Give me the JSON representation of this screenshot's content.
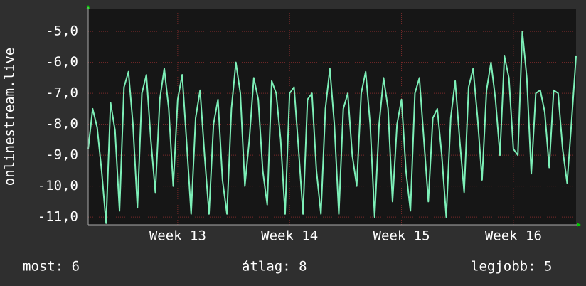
{
  "chart_data": {
    "type": "line",
    "ylabel": "onlinestream.live",
    "x": [
      12.2,
      12.24,
      12.28,
      12.32,
      12.36,
      12.4,
      12.44,
      12.48,
      12.52,
      12.56,
      12.6,
      12.64,
      12.68,
      12.72,
      12.76,
      12.8,
      12.84,
      12.88,
      12.92,
      12.96,
      13,
      13.04,
      13.08,
      13.12,
      13.16,
      13.2,
      13.24,
      13.28,
      13.32,
      13.36,
      13.4,
      13.44,
      13.48,
      13.52,
      13.56,
      13.6,
      13.64,
      13.68,
      13.72,
      13.76,
      13.8,
      13.84,
      13.88,
      13.92,
      13.96,
      14,
      14.04,
      14.08,
      14.12,
      14.16,
      14.2,
      14.24,
      14.28,
      14.32,
      14.36,
      14.4,
      14.44,
      14.48,
      14.52,
      14.56,
      14.6,
      14.64,
      14.68,
      14.72,
      14.76,
      14.8,
      14.84,
      14.88,
      14.92,
      14.96,
      15,
      15.04,
      15.08,
      15.12,
      15.16,
      15.2,
      15.24,
      15.28,
      15.32,
      15.36,
      15.4,
      15.44,
      15.48,
      15.52,
      15.56,
      15.6,
      15.64,
      15.68,
      15.72,
      15.76,
      15.8,
      15.84,
      15.88,
      15.92,
      15.96,
      16,
      16.04,
      16.08,
      16.12,
      16.16,
      16.2,
      16.24,
      16.28,
      16.32,
      16.36,
      16.4,
      16.44,
      16.48,
      16.52,
      16.56
    ],
    "series": [
      {
        "color": "#7df0b8",
        "values": [
          -8.8,
          -7.5,
          -8.1,
          -9.5,
          -11.2,
          -7.3,
          -8.2,
          -10.8,
          -6.8,
          -6.3,
          -8.0,
          -10.7,
          -7.0,
          -6.4,
          -8.5,
          -10.2,
          -7.2,
          -6.2,
          -7.5,
          -10.0,
          -7.2,
          -6.4,
          -8.6,
          -10.9,
          -7.8,
          -6.9,
          -9.0,
          -10.9,
          -8.0,
          -7.2,
          -9.8,
          -10.9,
          -7.5,
          -6.0,
          -7.0,
          -10.0,
          -8.5,
          -6.5,
          -7.2,
          -9.5,
          -10.6,
          -6.6,
          -7.0,
          -8.5,
          -10.9,
          -7.0,
          -6.8,
          -8.8,
          -10.9,
          -7.2,
          -7.0,
          -9.5,
          -10.9,
          -7.5,
          -6.2,
          -8.0,
          -10.9,
          -7.5,
          -7.0,
          -9.0,
          -10.0,
          -7.0,
          -6.3,
          -8.0,
          -11.0,
          -8.0,
          -6.5,
          -7.5,
          -10.5,
          -8.0,
          -7.2,
          -9.5,
          -10.8,
          -7.0,
          -6.5,
          -8.5,
          -10.5,
          -7.8,
          -7.5,
          -9.0,
          -11.0,
          -7.8,
          -6.6,
          -8.5,
          -10.2,
          -6.8,
          -6.2,
          -7.8,
          -9.8,
          -6.9,
          -6.0,
          -7.2,
          -9.0,
          -5.8,
          -6.5,
          -8.8,
          -9.0,
          -5.0,
          -6.5,
          -9.6,
          -7.0,
          -6.9,
          -7.6,
          -9.4,
          -6.9,
          -7.0,
          -8.8,
          -9.9,
          -7.9,
          -5.8
        ]
      }
    ],
    "xlim": [
      12.2,
      16.56
    ],
    "xticks": [
      {
        "value": 13,
        "label": "Week 13"
      },
      {
        "value": 14,
        "label": "Week 14"
      },
      {
        "value": 15,
        "label": "Week 15"
      },
      {
        "value": 16,
        "label": "Week 16"
      }
    ],
    "ylim": [
      -11.25,
      -4.26
    ],
    "yticks": [
      {
        "value": -11,
        "label": "-11,0"
      },
      {
        "value": -10,
        "label": "-10,0"
      },
      {
        "value": -9,
        "label": "-9,0"
      },
      {
        "value": -8,
        "label": "-8,0"
      },
      {
        "value": -7,
        "label": "-7,0"
      },
      {
        "value": -6,
        "label": "-6,0"
      },
      {
        "value": -5,
        "label": "-5,0"
      }
    ],
    "grid": true,
    "stats": [
      "most: 6",
      "átlag: 8",
      "legjobb: 5"
    ]
  }
}
